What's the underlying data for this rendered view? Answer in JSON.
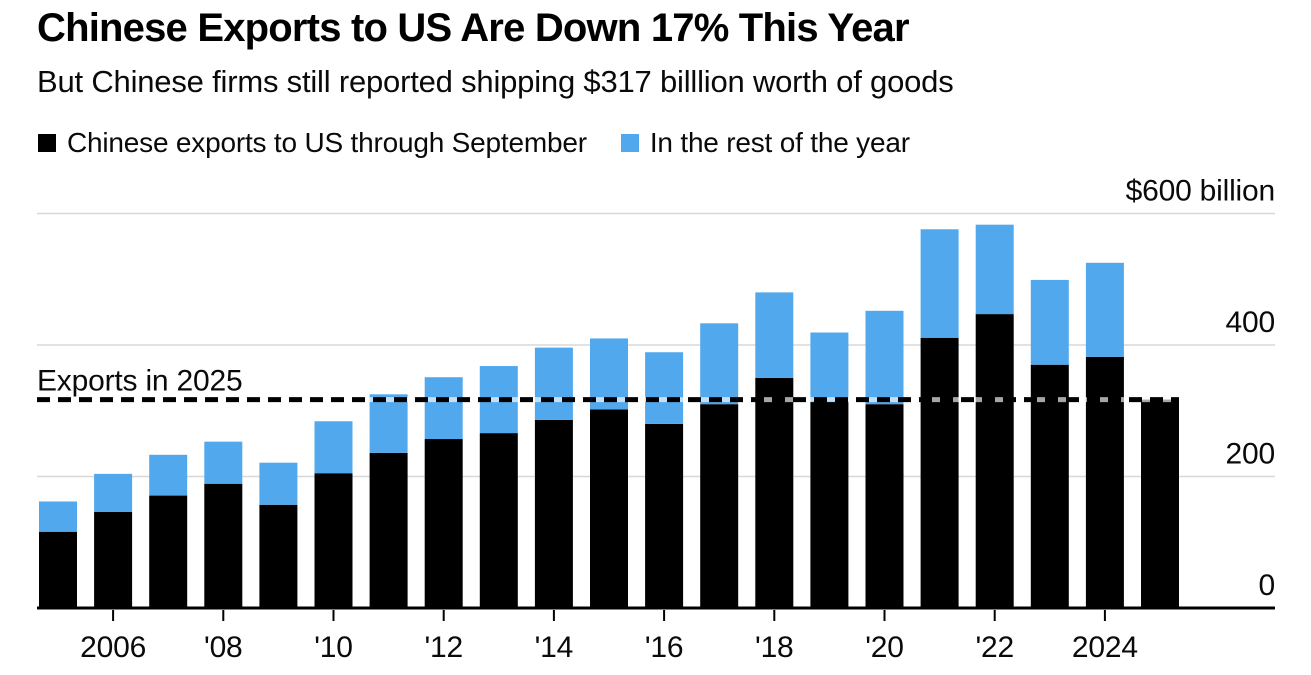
{
  "header": {
    "title": "Chinese Exports to US Are Down 17% This Year",
    "subtitle": "But Chinese firms still reported shipping $317 billlion worth of goods"
  },
  "legend": {
    "items": [
      {
        "label": "Chinese exports to US through September",
        "color": "#000000"
      },
      {
        "label": "In the rest of the year",
        "color": "#52A8EC"
      }
    ]
  },
  "chart_data": {
    "type": "bar",
    "stacked": true,
    "title": "Chinese Exports to US Are Down 17% This Year",
    "subtitle": "But Chinese firms still reported shipping $317 billlion worth of goods",
    "unit": "USD billions",
    "categories": [
      2005,
      2006,
      2007,
      2008,
      2009,
      2010,
      2011,
      2012,
      2013,
      2014,
      2015,
      2016,
      2017,
      2018,
      2019,
      2020,
      2021,
      2022,
      2023,
      2024,
      2025
    ],
    "series": [
      {
        "name": "Chinese exports to US through September",
        "color": "#000000",
        "values": [
          116,
          146,
          171,
          189,
          157,
          205,
          236,
          257,
          266,
          286,
          302,
          280,
          310,
          350,
          314,
          310,
          411,
          447,
          370,
          382,
          317
        ]
      },
      {
        "name": "In the rest of the year",
        "color": "#52A8EC",
        "values": [
          46,
          58,
          62,
          64,
          64,
          79,
          89,
          94,
          102,
          110,
          108,
          109,
          123,
          130,
          105,
          142,
          165,
          136,
          129,
          143,
          0
        ]
      }
    ],
    "x_ticks": [
      {
        "year": 2006,
        "label": "2006"
      },
      {
        "year": 2008,
        "label": "'08"
      },
      {
        "year": 2010,
        "label": "'10"
      },
      {
        "year": 2012,
        "label": "'12"
      },
      {
        "year": 2014,
        "label": "'14"
      },
      {
        "year": 2016,
        "label": "'16"
      },
      {
        "year": 2018,
        "label": "'18"
      },
      {
        "year": 2020,
        "label": "'20"
      },
      {
        "year": 2022,
        "label": "'22"
      },
      {
        "year": 2024,
        "label": "2024"
      }
    ],
    "y_axis": {
      "ylim": [
        0,
        600
      ],
      "ticks": [
        {
          "value": 600,
          "label": "$600 billion"
        },
        {
          "value": 400,
          "label": "400"
        },
        {
          "value": 200,
          "label": "200"
        },
        {
          "value": 0,
          "label": "0"
        }
      ]
    },
    "reference_line": {
      "label": "Exports in 2025",
      "value": 317,
      "style": "dashed"
    },
    "grid": true,
    "legend_position": "top"
  },
  "colors": {
    "background": "#FFFFFF",
    "bar_primary": "#000000",
    "bar_secondary": "#52A8EC",
    "gridline": "#D8D8D8",
    "axis_line": "#000000",
    "reference_dash": "#000000",
    "reference_dash_gap": "rgba(255,255,255,0.65)"
  }
}
